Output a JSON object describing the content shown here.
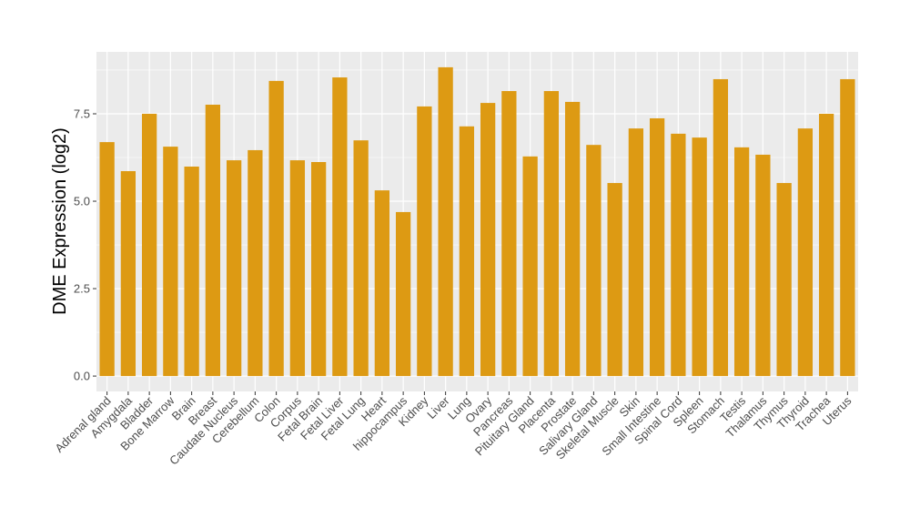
{
  "chart_data": {
    "type": "bar",
    "title": "",
    "xlabel": "",
    "ylabel": "DME Expression (log2)",
    "ylim": [
      -0.44,
      9.27
    ],
    "yticks": [
      0,
      2.5,
      5,
      7.5
    ],
    "ytick_labels": [
      "0.0",
      "2.5",
      "5.0",
      "7.5"
    ],
    "grid": true,
    "bar_color": "#DD9A13",
    "panel_color": "#EBEBEB",
    "categories": [
      "Adrenal gland",
      "Amygdala",
      "Bladder",
      "Bone Marrow",
      "Brain",
      "Breast",
      "Caudate Nucleus",
      "Cerebellum",
      "Colon",
      "Corpus",
      "Fetal Brain",
      "Fetal Liver",
      "Fetal Lung",
      "Heart",
      "hippocampus",
      "Kidney",
      "Liver",
      "Lung",
      "Ovary",
      "Pancreas",
      "Pituitary Gland",
      "Placenta",
      "Prostate",
      "Salivary Gland",
      "Skeletal Muscle",
      "Skin",
      "Small Intestine",
      "Spinal Cord",
      "Spleen",
      "Stomach",
      "Testis",
      "Thalamus",
      "Thymus",
      "Thyroid",
      "Trachea",
      "Uterus"
    ],
    "values": [
      6.69,
      5.86,
      7.5,
      6.56,
      5.99,
      7.76,
      6.17,
      6.46,
      8.44,
      6.17,
      6.12,
      8.54,
      6.74,
      5.31,
      4.69,
      7.71,
      8.83,
      7.14,
      7.81,
      8.15,
      6.28,
      8.15,
      7.84,
      6.61,
      5.52,
      7.08,
      7.37,
      6.93,
      6.82,
      8.49,
      6.54,
      6.33,
      5.52,
      7.08,
      7.5,
      8.49
    ]
  }
}
